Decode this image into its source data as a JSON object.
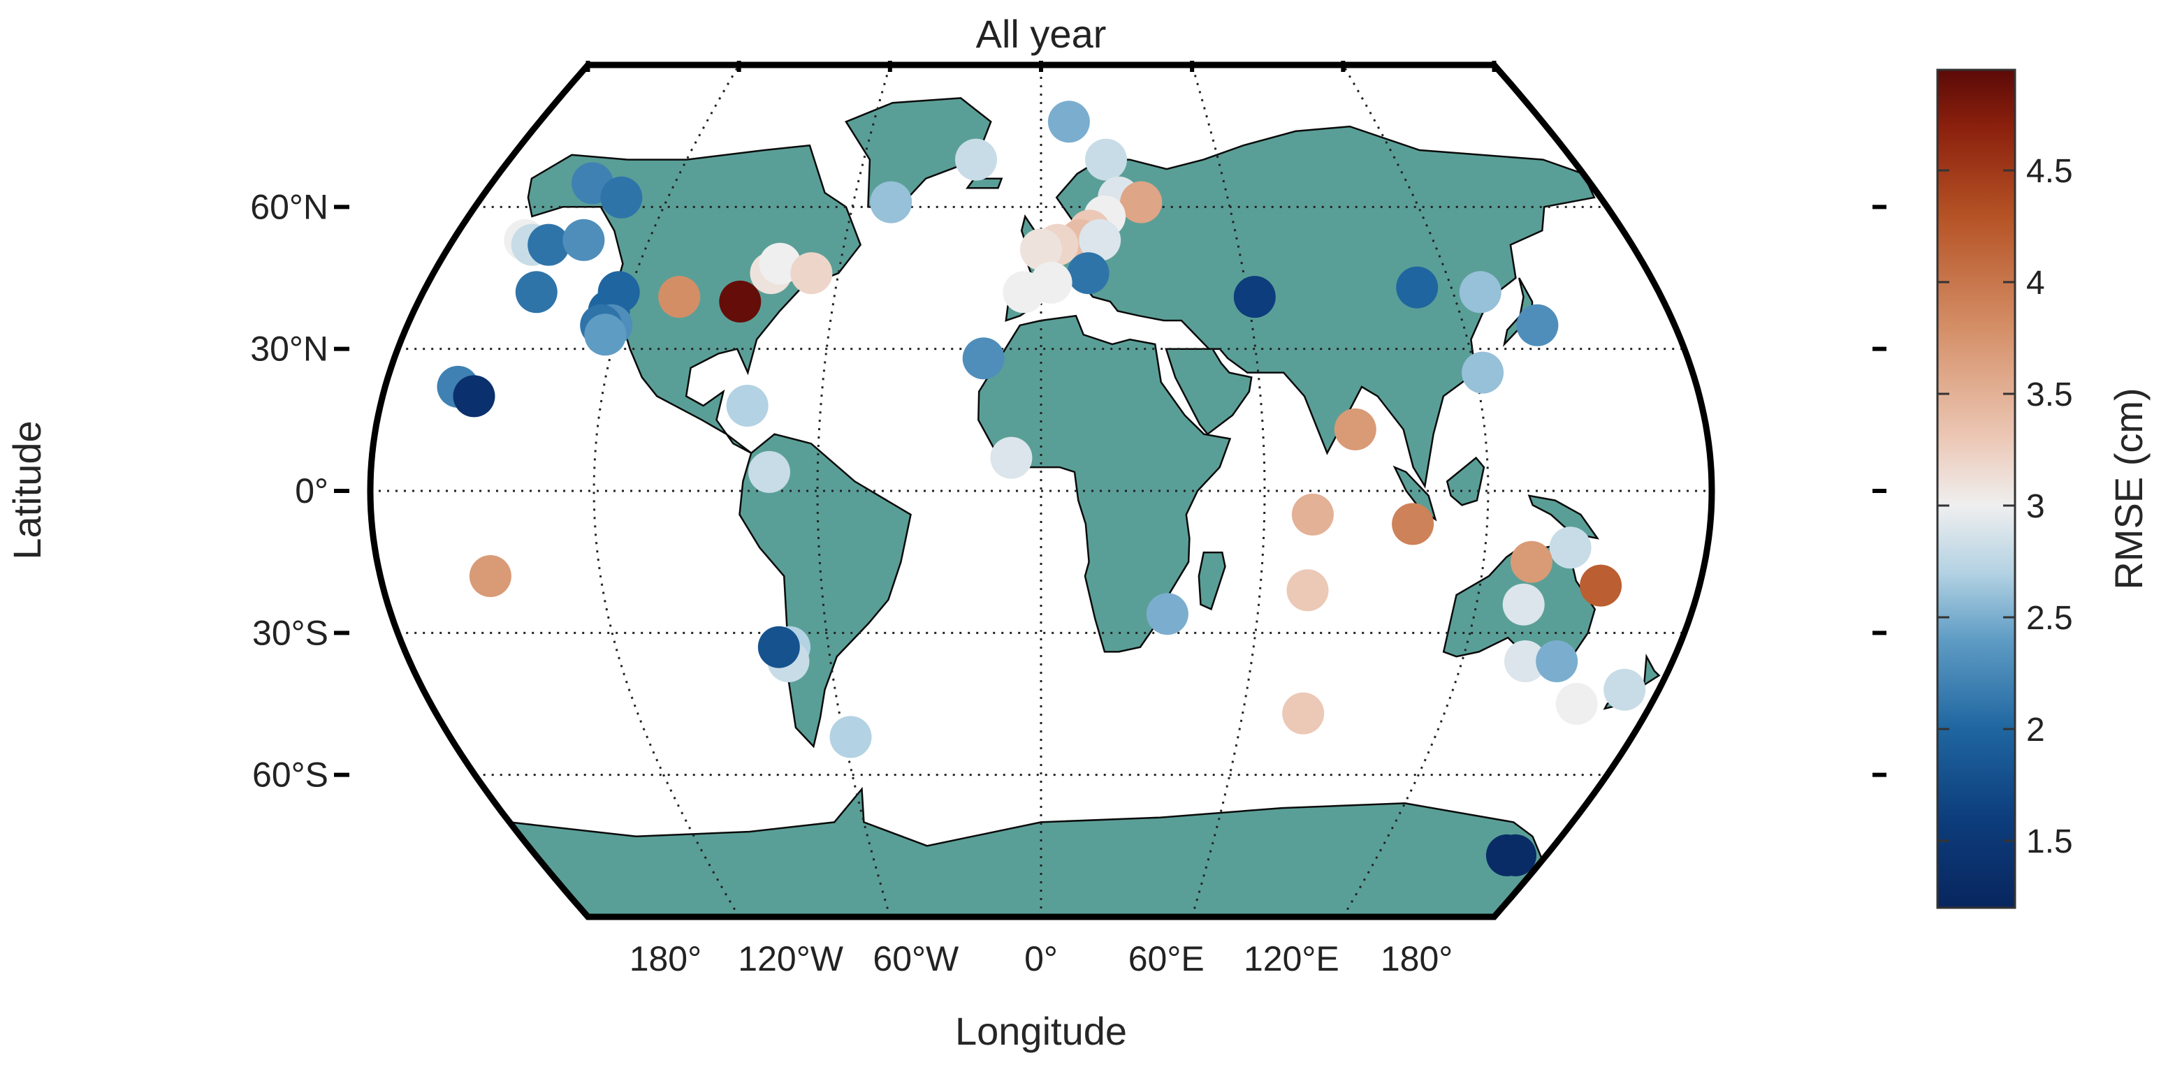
{
  "title": "All year",
  "projection": "Robinson",
  "colors": {
    "land": "#5a9f97",
    "ocean": "#ffffff",
    "coast": "#0a0a0a",
    "frame": "#000000",
    "grid": "#222222"
  },
  "axes": {
    "xlabel": "Longitude",
    "ylabel": "Latitude",
    "lon_ticks": [
      {
        "value": -180,
        "label": "180°"
      },
      {
        "value": -120,
        "label": "120°W"
      },
      {
        "value": -60,
        "label": "60°W"
      },
      {
        "value": 0,
        "label": "0°"
      },
      {
        "value": 60,
        "label": "60°E"
      },
      {
        "value": 120,
        "label": "120°E"
      },
      {
        "value": 180,
        "label": "180°"
      }
    ],
    "lat_ticks": [
      {
        "value": 60,
        "label": "60°N"
      },
      {
        "value": 30,
        "label": "30°N"
      },
      {
        "value": 0,
        "label": "0°"
      },
      {
        "value": -30,
        "label": "30°S"
      },
      {
        "value": -60,
        "label": "60°S"
      }
    ],
    "grid": true
  },
  "colorbar": {
    "label": "RMSE (cm)",
    "range": [
      1.2,
      4.95
    ],
    "ticks": [
      {
        "value": 1.5,
        "label": "1.5"
      },
      {
        "value": 2,
        "label": "2"
      },
      {
        "value": 2.5,
        "label": "2.5"
      },
      {
        "value": 3,
        "label": "3"
      },
      {
        "value": 3.5,
        "label": "3.5"
      },
      {
        "value": 4,
        "label": "4"
      },
      {
        "value": 4.5,
        "label": "4.5"
      }
    ],
    "stops": [
      {
        "v": 1.2,
        "c": "#08265e"
      },
      {
        "v": 1.6,
        "c": "#0d3d7c"
      },
      {
        "v": 2.0,
        "c": "#1f66a0"
      },
      {
        "v": 2.4,
        "c": "#5f9cc4"
      },
      {
        "v": 2.7,
        "c": "#b3d2e3"
      },
      {
        "v": 3.0,
        "c": "#efefef"
      },
      {
        "v": 3.3,
        "c": "#ecc8b6"
      },
      {
        "v": 3.8,
        "c": "#d48e66"
      },
      {
        "v": 4.3,
        "c": "#b55225"
      },
      {
        "v": 4.7,
        "c": "#8a200d"
      },
      {
        "v": 4.95,
        "c": "#5c0a08"
      }
    ]
  },
  "chart_data": {
    "type": "scatter",
    "title": "All year",
    "xlabel": "Longitude",
    "ylabel": "Latitude",
    "color_label": "RMSE (cm)",
    "points": [
      {
        "lon": -147,
        "lat": 65,
        "rmse": 2.2
      },
      {
        "lon": -135,
        "lat": 62,
        "rmse": 2.1
      },
      {
        "lon": -158,
        "lat": 53,
        "rmse": 3.0
      },
      {
        "lon": -155,
        "lat": 52,
        "rmse": 2.8
      },
      {
        "lon": -150,
        "lat": 52,
        "rmse": 2.1
      },
      {
        "lon": -140,
        "lat": 53,
        "rmse": 2.3
      },
      {
        "lon": -147,
        "lat": 42,
        "rmse": 2.1
      },
      {
        "lon": -123,
        "lat": 42,
        "rmse": 2.0
      },
      {
        "lon": -124,
        "lat": 38,
        "rmse": 2.0
      },
      {
        "lon": -122,
        "lat": 35,
        "rmse": 2.3
      },
      {
        "lon": -125,
        "lat": 35,
        "rmse": 2.1
      },
      {
        "lon": -123,
        "lat": 33,
        "rmse": 2.4
      },
      {
        "lon": -105,
        "lat": 41,
        "rmse": 3.8
      },
      {
        "lon": -87,
        "lat": 40,
        "rmse": 4.9
      },
      {
        "lon": -80,
        "lat": 46,
        "rmse": 3.1
      },
      {
        "lon": -78,
        "lat": 48,
        "rmse": 3.0
      },
      {
        "lon": -68,
        "lat": 46,
        "rmse": 3.2
      },
      {
        "lon": -48,
        "lat": 61,
        "rmse": 2.6
      },
      {
        "lon": -22,
        "lat": 70,
        "rmse": 2.8
      },
      {
        "lon": 10,
        "lat": 78,
        "rmse": 2.5
      },
      {
        "lon": 22,
        "lat": 70,
        "rmse": 2.8
      },
      {
        "lon": 25,
        "lat": 62,
        "rmse": 2.9
      },
      {
        "lon": 32,
        "lat": 61,
        "rmse": 3.6
      },
      {
        "lon": 20,
        "lat": 58,
        "rmse": 3.0
      },
      {
        "lon": 15,
        "lat": 55,
        "rmse": 3.3
      },
      {
        "lon": 12,
        "lat": 53,
        "rmse": 3.4
      },
      {
        "lon": 5,
        "lat": 52,
        "rmse": 3.2
      },
      {
        "lon": 0,
        "lat": 51,
        "rmse": 3.1
      },
      {
        "lon": 18,
        "lat": 53,
        "rmse": 2.9
      },
      {
        "lon": 14,
        "lat": 46,
        "rmse": 2.1
      },
      {
        "lon": 3,
        "lat": 44,
        "rmse": 3.0
      },
      {
        "lon": -5,
        "lat": 42,
        "rmse": 3.0
      },
      {
        "lon": 62,
        "lat": 41,
        "rmse": 1.6
      },
      {
        "lon": 110,
        "lat": 43,
        "rmse": 2.0
      },
      {
        "lon": -16,
        "lat": 28,
        "rmse": 2.3
      },
      {
        "lon": -160,
        "lat": 22,
        "rmse": 2.2
      },
      {
        "lon": -155,
        "lat": 20,
        "rmse": 1.4
      },
      {
        "lon": -80,
        "lat": 18,
        "rmse": 2.7
      },
      {
        "lon": -73,
        "lat": 4,
        "rmse": 2.8
      },
      {
        "lon": -8,
        "lat": 7,
        "rmse": 2.9
      },
      {
        "lon": 128,
        "lat": 42,
        "rmse": 2.6
      },
      {
        "lon": 141,
        "lat": 35,
        "rmse": 2.3
      },
      {
        "lon": 122,
        "lat": 25,
        "rmse": 2.6
      },
      {
        "lon": 85,
        "lat": 13,
        "rmse": 3.7
      },
      {
        "lon": 73,
        "lat": -5,
        "rmse": 3.5
      },
      {
        "lon": 100,
        "lat": -7,
        "rmse": 3.9
      },
      {
        "lon": 143,
        "lat": -12,
        "rmse": 2.8
      },
      {
        "lon": 73,
        "lat": -21,
        "rmse": 3.3
      },
      {
        "lon": 35,
        "lat": -26,
        "rmse": 2.5
      },
      {
        "lon": 78,
        "lat": -47,
        "rmse": 3.3
      },
      {
        "lon": -150,
        "lat": -18,
        "rmse": 3.7
      },
      {
        "lon": -71,
        "lat": -33,
        "rmse": 2.7
      },
      {
        "lon": -72,
        "lat": -36,
        "rmse": 2.8
      },
      {
        "lon": -74,
        "lat": -33,
        "rmse": 1.8
      },
      {
        "lon": -58,
        "lat": -52,
        "rmse": 2.7
      },
      {
        "lon": 133,
        "lat": -15,
        "rmse": 3.7
      },
      {
        "lon": 153,
        "lat": -20,
        "rmse": 4.2
      },
      {
        "lon": 133,
        "lat": -24,
        "rmse": 2.9
      },
      {
        "lon": 138,
        "lat": -36,
        "rmse": 2.9
      },
      {
        "lon": 147,
        "lat": -36,
        "rmse": 2.5
      },
      {
        "lon": 158,
        "lat": -45,
        "rmse": 3.0
      },
      {
        "lon": 170,
        "lat": -42,
        "rmse": 2.8
      },
      {
        "lon": 166,
        "lat": -77,
        "rmse": 1.3
      },
      {
        "lon": 169,
        "lat": -77,
        "rmse": 1.3
      }
    ]
  }
}
